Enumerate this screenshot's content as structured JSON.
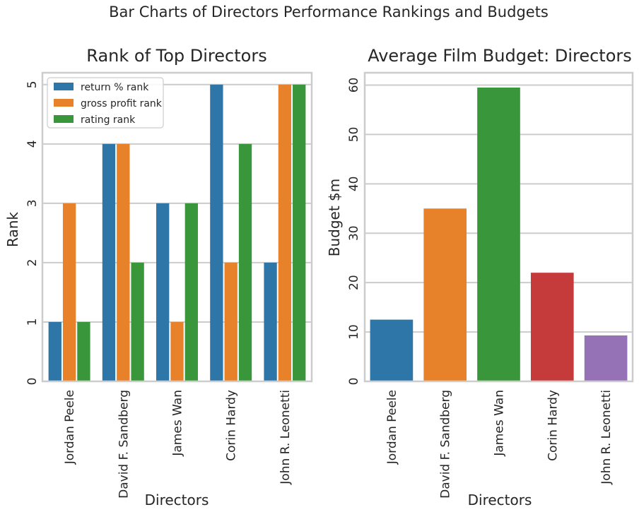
{
  "suptitle": "Bar Charts of Directors Performance Rankings and Budgets",
  "chart_data": [
    {
      "type": "bar",
      "title": "Rank of Top Directors",
      "xlabel": "Directors",
      "ylabel": "Rank",
      "ylim": [
        0,
        5.2
      ],
      "yticks": [
        0,
        1,
        2,
        3,
        4,
        5
      ],
      "grid": true,
      "legend_position": "top-left",
      "categories": [
        "Jordan Peele",
        "David F. Sandberg",
        "James Wan",
        "Corin Hardy",
        "John R. Leonetti"
      ],
      "series": [
        {
          "name": "return % rank",
          "color": "#2e75a8",
          "values": [
            1,
            4,
            3,
            5,
            2
          ]
        },
        {
          "name": "gross profit rank",
          "color": "#e8822a",
          "values": [
            3,
            4,
            1,
            2,
            5
          ]
        },
        {
          "name": "rating rank",
          "color": "#3a963a",
          "values": [
            1,
            2,
            3,
            4,
            5
          ]
        }
      ]
    },
    {
      "type": "bar",
      "title": "Average Film Budget: Directors",
      "xlabel": "Directors",
      "ylabel": "Budget $m",
      "ylim": [
        0,
        62.5
      ],
      "yticks": [
        0,
        10,
        20,
        30,
        40,
        50,
        60
      ],
      "grid": true,
      "categories": [
        "Jordan Peele",
        "David F. Sandberg",
        "James Wan",
        "Corin Hardy",
        "John R. Leonetti"
      ],
      "values": [
        12.5,
        35,
        59.5,
        22,
        9.3
      ],
      "colors": [
        "#2e75a8",
        "#e8822a",
        "#3a963a",
        "#c53a3b",
        "#9472b5"
      ]
    }
  ]
}
